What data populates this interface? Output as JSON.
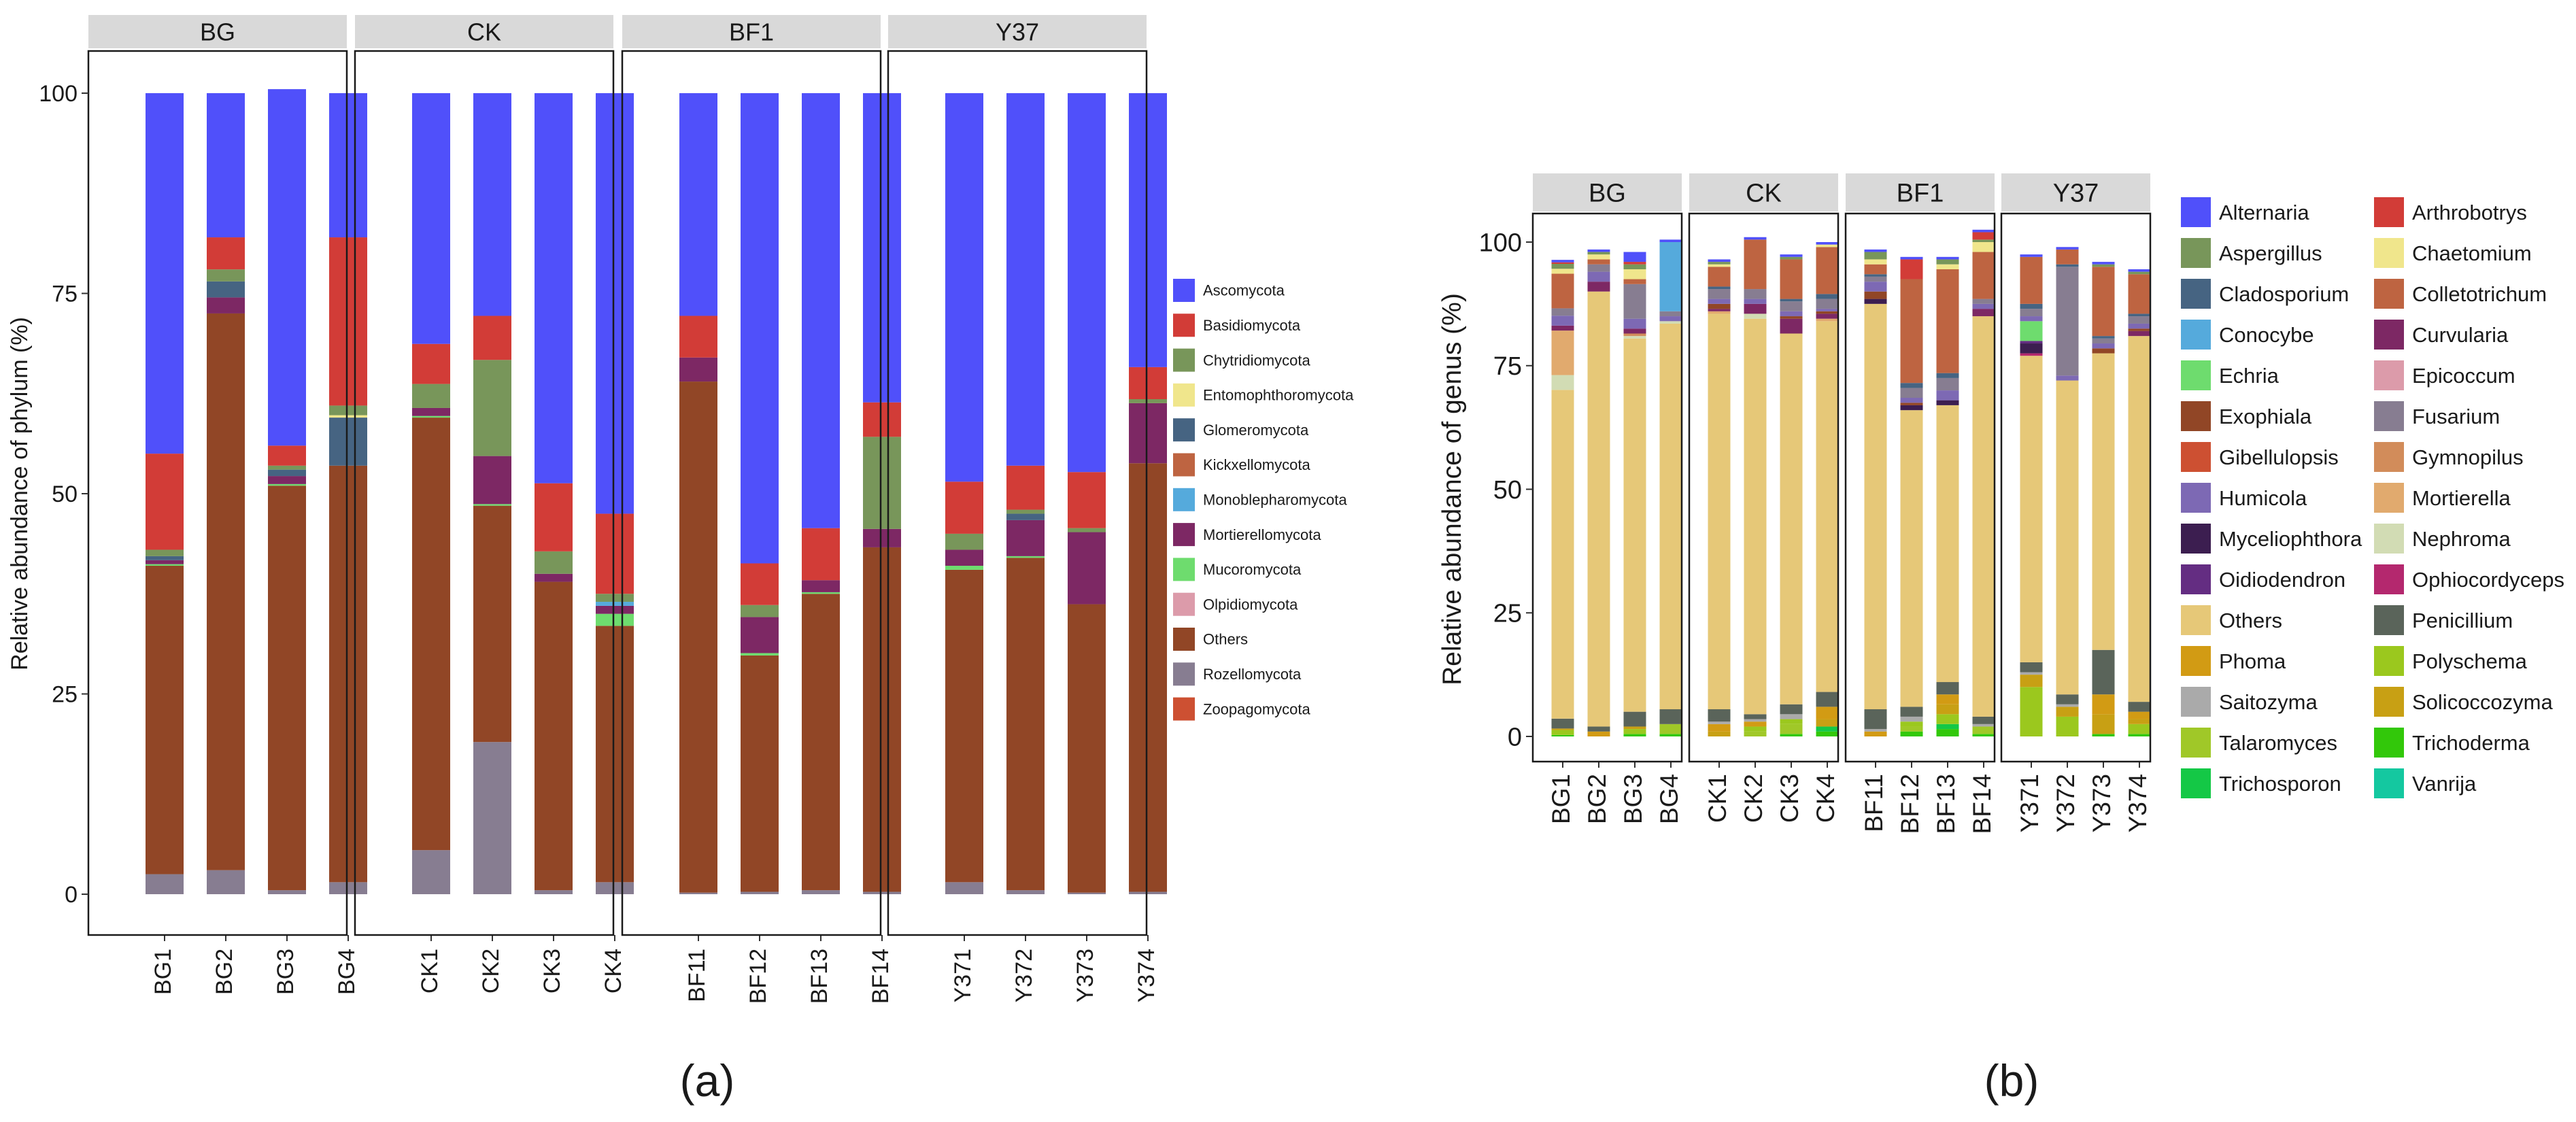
{
  "chart_data": [
    {
      "type": "bar",
      "stacked": true,
      "panel_label": "(a)",
      "ylabel": "Relative abundance of phylum (%)",
      "xlabel": "",
      "ylim": [
        0,
        100
      ],
      "yticks": [
        0,
        25,
        50,
        75,
        100
      ],
      "grid": false,
      "legend_position": "right",
      "facets": [
        "BG",
        "CK",
        "BF1",
        "Y37"
      ],
      "samples": [
        [
          "BG1",
          "BG2",
          "BG3",
          "BG4"
        ],
        [
          "CK1",
          "CK2",
          "CK3",
          "CK4"
        ],
        [
          "BF11",
          "BF12",
          "BF13",
          "BF14"
        ],
        [
          "Y371",
          "Y372",
          "Y373",
          "Y374"
        ]
      ],
      "stack_order": [
        "Rozellomycota",
        "Others",
        "Olpidiomycota",
        "Mucoromycota",
        "Mortierellomycota",
        "Monoblepharomycota",
        "Kickxellomycota",
        "Glomeromycota",
        "Entomophthoromycota",
        "Chytridiomycota",
        "Basidiomycota",
        "Zoopagomycota",
        "Ascomycota"
      ],
      "legend": [
        "Ascomycota",
        "Basidiomycota",
        "Chytridiomycota",
        "Entomophthoromycota",
        "Glomeromycota",
        "Kickxellomycota",
        "Monoblepharomycota",
        "Mortierellomycota",
        "Mucoromycota",
        "Olpidiomycota",
        "Others",
        "Rozellomycota",
        "Zoopagomycota"
      ],
      "colors": {
        "Ascomycota": "#5050fa",
        "Basidiomycota": "#d23c37",
        "Chytridiomycota": "#78965a",
        "Entomophthoromycota": "#f0e68c",
        "Glomeromycota": "#466482",
        "Kickxellomycota": "#be6441",
        "Monoblepharomycota": "#55aadc",
        "Mortierellomycota": "#7d2864",
        "Mucoromycota": "#6edc6e",
        "Olpidiomycota": "#dc9baa",
        "Others": "#914626",
        "Rozellomycota": "#877d91",
        "Zoopagomycota": "#cd5032"
      },
      "series": [
        {
          "name": "Rozellomycota",
          "values": [
            2.5,
            3,
            0.5,
            1.5,
            5.5,
            19,
            0.5,
            1.5,
            0.2,
            0.3,
            0.5,
            0.3,
            1.5,
            0.5,
            0.2,
            0.3
          ]
        },
        {
          "name": "Others",
          "values": [
            38.5,
            69.5,
            50.5,
            52,
            54,
            29.5,
            38.5,
            32,
            63.8,
            29.5,
            37,
            43,
            39,
            41.5,
            36,
            53.5
          ]
        },
        {
          "name": "Olpidiomycota",
          "values": [
            0,
            0,
            0,
            0,
            0,
            0,
            0,
            0,
            0,
            0,
            0,
            0,
            0,
            0,
            0,
            0
          ]
        },
        {
          "name": "Mucoromycota",
          "values": [
            0.2,
            0,
            0.2,
            0,
            0.2,
            0.2,
            0,
            1.5,
            0,
            0.3,
            0.2,
            0,
            0.5,
            0.2,
            0,
            0
          ]
        },
        {
          "name": "Mortierellomycota",
          "values": [
            0.5,
            2,
            1,
            0,
            1,
            6,
            1,
            1,
            3,
            4.5,
            1.5,
            2.3,
            2,
            4.5,
            9,
            7.5
          ]
        },
        {
          "name": "Monoblepharomycota",
          "values": [
            0,
            0,
            0,
            0,
            0,
            0,
            0,
            0.5,
            0,
            0,
            0,
            0,
            0,
            0,
            0,
            0
          ]
        },
        {
          "name": "Kickxellomycota",
          "values": [
            0,
            0,
            0,
            0,
            0,
            0,
            0,
            0,
            0,
            0,
            0,
            0,
            0,
            0,
            0,
            0
          ]
        },
        {
          "name": "Glomeromycota",
          "values": [
            0.5,
            2,
            0.8,
            6,
            0,
            0,
            0,
            0,
            0,
            0,
            0,
            0,
            0,
            0.8,
            0,
            0
          ]
        },
        {
          "name": "Entomophthoromycota",
          "values": [
            0,
            0,
            0,
            0.3,
            0,
            0,
            0,
            0,
            0,
            0,
            0,
            0,
            0,
            0,
            0,
            0
          ]
        },
        {
          "name": "Chytridiomycota",
          "values": [
            0.8,
            1.5,
            0.5,
            1.2,
            3,
            12,
            2.8,
            1,
            0,
            1.5,
            0,
            11.5,
            2,
            0.5,
            0.5,
            0.5
          ]
        },
        {
          "name": "Basidiomycota",
          "values": [
            12,
            4,
            2.5,
            21,
            5,
            5.5,
            8.5,
            10,
            5.2,
            5.2,
            6.5,
            4.3,
            6.5,
            5.5,
            7,
            4
          ]
        },
        {
          "name": "Zoopagomycota",
          "values": [
            0,
            0,
            0,
            0,
            0,
            0,
            0,
            0,
            0,
            0,
            0,
            0,
            0,
            0,
            0,
            0
          ]
        },
        {
          "name": "Ascomycota",
          "values": [
            45,
            18,
            44.5,
            18,
            31.3,
            27.8,
            48.7,
            52.5,
            27.8,
            58.7,
            54.3,
            38.6,
            48.5,
            46.5,
            47.3,
            34.2
          ]
        }
      ]
    },
    {
      "type": "bar",
      "stacked": true,
      "panel_label": "(b)",
      "ylabel": "Relative abundance of genus (%)",
      "xlabel": "",
      "ylim": [
        0,
        100
      ],
      "yticks": [
        0,
        25,
        50,
        75,
        100
      ],
      "grid": false,
      "legend_position": "right",
      "facets": [
        "BG",
        "CK",
        "BF1",
        "Y37"
      ],
      "samples": [
        [
          "BG1",
          "BG2",
          "BG3",
          "BG4"
        ],
        [
          "CK1",
          "CK2",
          "CK3",
          "CK4"
        ],
        [
          "BF11",
          "BF12",
          "BF13",
          "BF14"
        ],
        [
          "Y371",
          "Y372",
          "Y373",
          "Y374"
        ]
      ],
      "stack_order": [
        "Trichoderma",
        "Trichosporon",
        "Talaromyces",
        "Polyschema",
        "Solicoccozyma",
        "Phoma",
        "Saitozyma",
        "Penicillium",
        "Others",
        "Nephroma",
        "Mortierella",
        "Gymnopilus",
        "Epicoccum",
        "Ophiocordyceps",
        "Curvularia",
        "Myceliophthora",
        "Oidiodendron",
        "Exophiala",
        "Echria",
        "Humicola",
        "Fusarium",
        "Conocybe",
        "Cladosporium",
        "Gibellulopsis",
        "Colletotrichum",
        "Chaetomium",
        "Aspergillus",
        "Arthrobotrys",
        "Vanrija",
        "Alternaria"
      ],
      "legend": [
        "Alternaria",
        "Arthrobotrys",
        "Aspergillus",
        "Chaetomium",
        "Cladosporium",
        "Colletotrichum",
        "Conocybe",
        "Curvularia",
        "Echria",
        "Epicoccum",
        "Exophiala",
        "Fusarium",
        "Gibellulopsis",
        "Gymnopilus",
        "Humicola",
        "Mortierella",
        "Myceliophthora",
        "Nephroma",
        "Oidiodendron",
        "Ophiocordyceps",
        "Others",
        "Penicillium",
        "Phoma",
        "Polyschema",
        "Saitozyma",
        "Solicoccozyma",
        "Talaromyces",
        "Trichoderma",
        "Trichosporon",
        "Vanrija"
      ],
      "colors": {
        "Alternaria": "#5050fa",
        "Arthrobotrys": "#d23c37",
        "Aspergillus": "#78965a",
        "Chaetomium": "#f0e68c",
        "Cladosporium": "#466482",
        "Colletotrichum": "#be6441",
        "Conocybe": "#55aadc",
        "Curvularia": "#7d2864",
        "Echria": "#6edc6e",
        "Epicoccum": "#dc9baa",
        "Exophiala": "#914626",
        "Fusarium": "#877d91",
        "Gibellulopsis": "#cd5032",
        "Gymnopilus": "#d28c5a",
        "Humicola": "#7d69b4",
        "Mortierella": "#e1aa6e",
        "Myceliophthora": "#3c1e50",
        "Nephroma": "#d2dcb4",
        "Oidiodendron": "#642d82",
        "Ophiocordyceps": "#b4286e",
        "Others": "#e6c878",
        "Penicillium": "#5a645a",
        "Phoma": "#d29b14",
        "Polyschema": "#9bc81e",
        "Saitozyma": "#aaaaaa",
        "Solicoccozyma": "#c8a014",
        "Talaromyces": "#a0c828",
        "Trichoderma": "#32c80a",
        "Trichosporon": "#14c846",
        "Vanrija": "#14c8a0"
      },
      "series": [
        {
          "name": "Trichoderma",
          "values": [
            0.3,
            0,
            0.5,
            0.5,
            0,
            0,
            0.5,
            1,
            0,
            1,
            1.5,
            0.5,
            0,
            0,
            0.5,
            0.5
          ]
        },
        {
          "name": "Trichosporon",
          "values": [
            0,
            0,
            0,
            0,
            0,
            0,
            0,
            1,
            0,
            0,
            1,
            0,
            0,
            0,
            0,
            0
          ]
        },
        {
          "name": "Talaromyces",
          "values": [
            0,
            0,
            0,
            2,
            0,
            1,
            2,
            0,
            0,
            1,
            0,
            1.5,
            0,
            0,
            0,
            0
          ]
        },
        {
          "name": "Polyschema",
          "values": [
            1,
            0,
            1,
            0,
            0,
            1,
            1,
            0,
            0,
            1,
            2,
            0,
            10,
            4,
            0,
            2
          ]
        },
        {
          "name": "Solicoccozyma",
          "values": [
            0.3,
            0,
            0.5,
            0,
            1,
            0,
            0,
            1.5,
            0,
            0,
            2,
            0,
            2.5,
            2,
            4,
            1
          ]
        },
        {
          "name": "Phoma",
          "values": [
            0,
            1,
            0,
            0,
            1.5,
            1,
            0,
            2.5,
            1,
            0,
            2,
            0,
            0,
            0,
            4,
            1.5
          ]
        },
        {
          "name": "Saitozyma",
          "values": [
            0,
            0,
            0,
            0,
            0.5,
            0.5,
            1,
            0,
            0.5,
            1,
            0,
            0.5,
            0.5,
            0.5,
            0,
            0
          ]
        },
        {
          "name": "Penicillium",
          "values": [
            2,
            1,
            3,
            3,
            2.5,
            1,
            2,
            3,
            4,
            2,
            2.5,
            1.5,
            2,
            2,
            9,
            2
          ]
        },
        {
          "name": "Others",
          "values": [
            66.5,
            88,
            75.5,
            78,
            80,
            80,
            75,
            75,
            82,
            60,
            56,
            81,
            62,
            63.5,
            60,
            74
          ]
        },
        {
          "name": "Nephroma",
          "values": [
            3,
            0,
            0.5,
            0.5,
            0,
            1,
            0,
            0,
            0,
            0,
            0,
            0,
            0,
            0,
            0,
            0
          ]
        },
        {
          "name": "Mortierella",
          "values": [
            9,
            0,
            0,
            0,
            0.5,
            0,
            0,
            0.5,
            0,
            0,
            0,
            0,
            0,
            0,
            0,
            0
          ]
        },
        {
          "name": "Gymnopilus",
          "values": [
            0,
            0,
            0.5,
            0,
            0,
            0,
            0,
            0,
            0,
            0,
            0,
            0,
            0,
            0,
            0,
            0
          ]
        },
        {
          "name": "Epicoccum",
          "values": [
            0,
            0,
            0,
            0,
            0,
            0,
            0,
            0,
            0,
            0,
            0,
            0,
            0,
            0,
            0,
            0
          ]
        },
        {
          "name": "Ophiocordyceps",
          "values": [
            0,
            0,
            0,
            0,
            0,
            0,
            0,
            0,
            0,
            0,
            0,
            0,
            0.5,
            0,
            0,
            0
          ]
        },
        {
          "name": "Curvularia",
          "values": [
            1,
            2,
            1,
            0,
            0.5,
            2,
            3,
            1,
            0,
            0,
            0,
            1.5,
            0,
            0,
            0,
            1
          ]
        },
        {
          "name": "Myceliophthora",
          "values": [
            0,
            0,
            0,
            0,
            0,
            0,
            0,
            0,
            1,
            1,
            1,
            0,
            2,
            0,
            0,
            0
          ]
        },
        {
          "name": "Oidiodendron",
          "values": [
            0,
            0,
            0,
            0,
            0,
            0,
            0,
            0,
            0,
            0,
            0,
            0,
            0.5,
            0,
            0,
            0
          ]
        },
        {
          "name": "Exophiala",
          "values": [
            0,
            0,
            0,
            0,
            1,
            0,
            0.5,
            0.5,
            1.5,
            0.5,
            0,
            0,
            0,
            0,
            1,
            0.5
          ]
        },
        {
          "name": "Echria",
          "values": [
            0,
            0,
            0,
            0,
            0,
            0,
            0,
            0,
            0,
            0,
            0,
            0,
            4,
            0,
            0,
            0
          ]
        },
        {
          "name": "Humicola",
          "values": [
            2,
            2,
            2,
            1,
            1,
            1,
            1,
            0.5,
            2,
            1,
            2,
            1,
            1,
            1,
            1,
            1
          ]
        },
        {
          "name": "Fusarium",
          "values": [
            1.5,
            1.5,
            7,
            1,
            2,
            2,
            2,
            2,
            1,
            2,
            2.5,
            1,
            1.5,
            22,
            1,
            1.5
          ]
        },
        {
          "name": "Conocybe",
          "values": [
            0,
            0,
            0,
            14,
            0,
            0,
            0,
            0,
            0,
            0,
            0,
            0,
            0,
            0,
            0,
            0
          ]
        },
        {
          "name": "Cladosporium",
          "values": [
            0,
            0,
            0,
            0,
            0.5,
            0,
            0.5,
            1,
            0.5,
            1,
            1,
            0,
            1,
            0.5,
            0.5,
            0.5
          ]
        },
        {
          "name": "Gibellulopsis",
          "values": [
            0,
            0,
            0,
            0,
            0,
            0,
            0,
            0,
            0,
            0,
            0,
            0,
            0,
            0,
            0,
            0
          ]
        },
        {
          "name": "Colletotrichum",
          "values": [
            7,
            1,
            1,
            0,
            4,
            10,
            8,
            9.5,
            2,
            21,
            21,
            9.5,
            9.5,
            3,
            14,
            8
          ]
        },
        {
          "name": "Chaetomium",
          "values": [
            1,
            1,
            2,
            0,
            0.5,
            0,
            0,
            0.5,
            1,
            0,
            1,
            2,
            0,
            0,
            0,
            0
          ]
        },
        {
          "name": "Aspergillus",
          "values": [
            1,
            0.5,
            1,
            0,
            0.5,
            0,
            0.5,
            0,
            1.5,
            0,
            1,
            0.5,
            0,
            0,
            0.5,
            0.5
          ]
        },
        {
          "name": "Arthrobotrys",
          "values": [
            0.3,
            0,
            0.5,
            0,
            0,
            0,
            0,
            0,
            0,
            4,
            0,
            1.5,
            0,
            0,
            0,
            0
          ]
        },
        {
          "name": "Vanrija",
          "values": [
            0,
            0,
            0,
            0,
            0,
            0,
            0,
            0,
            0,
            0,
            0,
            0,
            0,
            0,
            0,
            0
          ]
        },
        {
          "name": "Alternaria",
          "values": [
            0.5,
            0.5,
            2,
            0.5,
            0.5,
            0.5,
            0.5,
            0.5,
            0.5,
            0.5,
            0.5,
            0.5,
            0.5,
            0.5,
            0.5,
            0.5
          ]
        }
      ]
    }
  ]
}
